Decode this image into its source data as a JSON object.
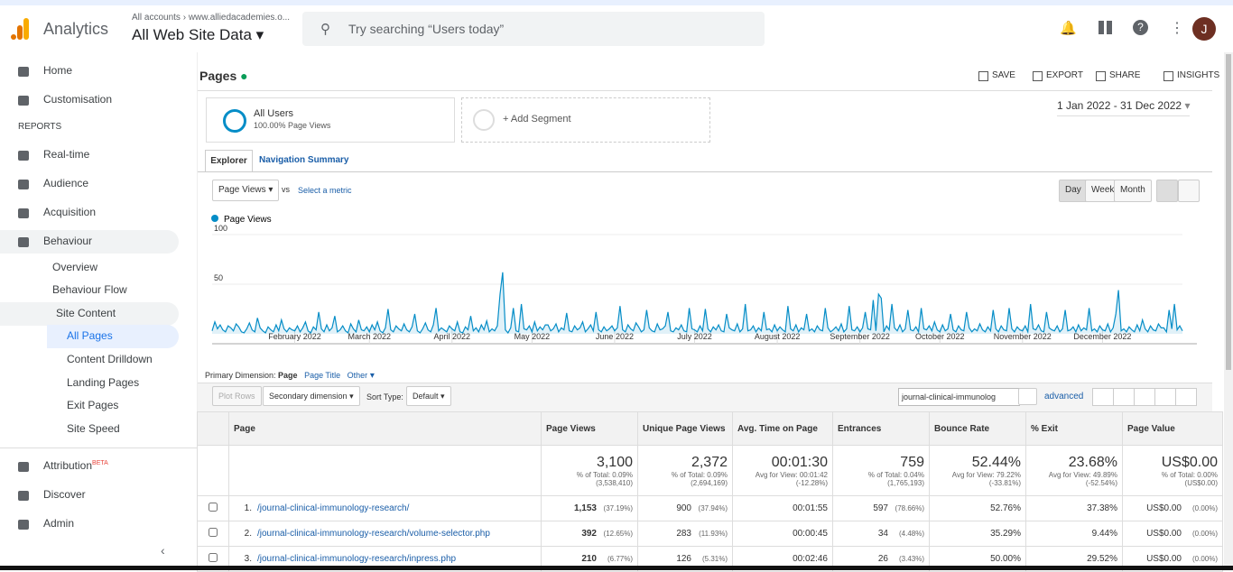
{
  "header": {
    "product": "Analytics",
    "breadcrumb_root": "All accounts",
    "breadcrumb_property": "www.alliedacademies.o...",
    "view": "All Web Site Data",
    "search_placeholder": "Try searching “Users today”",
    "avatar": "J"
  },
  "sidebar": {
    "items": [
      "Home",
      "Customisation",
      "REPORTS",
      "Real-time",
      "Audience",
      "Acquisition",
      "Behaviour",
      "Overview",
      "Behaviour Flow",
      "Site Content",
      "All Pages",
      "Content Drilldown",
      "Landing Pages",
      "Exit Pages",
      "Site Speed",
      "Attribution",
      "Discover",
      "Admin"
    ],
    "beta": "BETA"
  },
  "page": {
    "title": "Pages",
    "actions": [
      "SAVE",
      "EXPORT",
      "SHARE",
      "INSIGHTS"
    ],
    "segment_name": "All Users",
    "segment_sub": "100.00% Page Views",
    "add_segment": "+ Add Segment",
    "date_range": "1 Jan 2022 - 31 Dec 2022",
    "tabs": [
      "Explorer",
      "Navigation Summary"
    ],
    "metric": "Page Views",
    "vs": "vs",
    "select_metric": "Select a metric",
    "granularity": [
      "Day",
      "Week",
      "Month"
    ]
  },
  "chart_data": {
    "type": "line",
    "xlim": [
      0,
      364
    ],
    "ylim": [
      0,
      100
    ],
    "yticks": [
      50,
      100
    ],
    "xticks": [
      {
        "value": 31,
        "label": "February 2022"
      },
      {
        "value": 59,
        "label": "March 2022"
      },
      {
        "value": 90,
        "label": "April 2022"
      },
      {
        "value": 120,
        "label": "May 2022"
      },
      {
        "value": 151,
        "label": "June 2022"
      },
      {
        "value": 181,
        "label": "July 2022"
      },
      {
        "value": 212,
        "label": "August 2022"
      },
      {
        "value": 243,
        "label": "September 2022"
      },
      {
        "value": 273,
        "label": "October 2022"
      },
      {
        "value": 304,
        "label": "November 2022"
      },
      {
        "value": 334,
        "label": "December 2022"
      }
    ],
    "series": [
      {
        "name": "Page Views",
        "color": "#058dc7",
        "values": [
          3,
          12,
          5,
          9,
          4,
          2,
          8,
          6,
          3,
          10,
          7,
          2,
          1,
          5,
          11,
          4,
          2,
          16,
          6,
          3,
          1,
          7,
          4,
          2,
          9,
          3,
          14,
          5,
          2,
          6,
          4,
          3,
          8,
          2,
          6,
          12,
          3,
          1,
          7,
          4,
          22,
          5,
          2,
          9,
          3,
          6,
          18,
          2,
          4,
          8,
          3,
          1,
          10,
          5,
          2,
          14,
          4,
          3,
          7,
          2,
          9,
          4,
          12,
          3,
          1,
          6,
          25,
          4,
          2,
          8,
          5,
          3,
          10,
          4,
          2,
          7,
          20,
          3,
          1,
          5,
          11,
          4,
          2,
          9,
          26,
          3,
          6,
          4,
          2,
          8,
          5,
          3,
          12,
          2,
          1,
          7,
          4,
          18,
          3,
          6,
          2,
          9,
          4,
          13,
          2,
          5,
          3,
          8,
          40,
          62,
          4,
          1,
          6,
          26,
          3,
          2,
          30,
          5,
          4,
          8,
          2,
          12,
          3,
          7,
          4,
          9,
          9,
          3,
          5,
          10,
          2,
          6,
          4,
          21,
          3,
          2,
          8,
          4,
          6,
          12,
          2,
          5,
          9,
          3,
          22,
          4,
          2,
          7,
          3,
          5,
          8,
          3,
          6,
          28,
          4,
          2,
          9,
          5,
          3,
          11,
          7,
          2,
          4,
          24,
          6,
          3,
          2,
          10,
          4,
          5,
          8,
          22,
          3,
          2,
          6,
          4,
          9,
          3,
          2,
          26,
          5,
          4,
          2,
          8,
          3,
          25,
          5,
          2,
          7,
          4,
          9,
          3,
          2,
          20,
          6,
          4,
          3,
          10,
          2,
          5,
          30,
          3,
          4,
          8,
          2,
          6,
          3,
          22,
          4,
          5,
          2,
          9,
          3,
          7,
          4,
          2,
          28,
          5,
          3,
          9,
          2,
          6,
          4,
          20,
          3,
          5,
          2,
          8,
          4,
          3,
          26,
          6,
          2,
          4,
          7,
          3,
          10,
          2,
          5,
          28,
          4,
          3,
          7,
          2,
          6,
          22,
          5,
          4,
          34,
          3,
          40,
          36,
          2,
          8,
          4,
          30,
          6,
          3,
          9,
          2,
          5,
          24,
          4,
          3,
          7,
          2,
          26,
          5,
          4,
          8,
          3,
          12,
          4,
          2,
          9,
          3,
          5,
          20,
          4,
          2,
          8,
          4,
          3,
          22,
          6,
          2,
          5,
          3,
          10,
          4,
          2,
          7,
          3,
          24,
          5,
          2,
          8,
          4,
          3,
          26,
          5,
          2,
          7,
          4,
          3,
          8,
          2,
          30,
          5,
          4,
          9,
          3,
          2,
          22,
          6,
          4,
          3,
          8,
          2,
          5,
          24,
          3,
          4,
          7,
          2,
          9,
          3,
          6,
          4,
          26,
          3,
          5,
          2,
          8,
          4,
          3,
          10,
          2,
          6,
          20,
          44,
          3,
          5,
          2,
          7,
          4,
          2,
          9,
          3,
          14,
          5,
          2,
          8,
          4,
          3,
          10,
          6,
          6,
          2,
          24,
          5,
          30,
          4,
          8,
          3
        ]
      }
    ]
  },
  "controls": {
    "primary_label": "Primary Dimension:",
    "primary": "Page",
    "page_title": "Page Title",
    "other": "Other",
    "plot_rows": "Plot Rows",
    "secondary": "Secondary dimension",
    "sort_label": "Sort Type:",
    "sort": "Default",
    "filter": "journal-clinical-immunolog",
    "advanced": "advanced"
  },
  "table": {
    "headers": [
      "Page",
      "Page Views",
      "Unique Page Views",
      "Avg. Time on Page",
      "Entrances",
      "Bounce Rate",
      "% Exit",
      "Page Value"
    ],
    "totals": [
      [
        "3,100",
        "% of Total: 0.09%",
        "(3,538,410)"
      ],
      [
        "2,372",
        "% of Total: 0.09%",
        "(2,694,169)"
      ],
      [
        "00:01:30",
        "Avg for View: 00:01:42",
        "(-12.28%)"
      ],
      [
        "759",
        "% of Total: 0.04%",
        "(1,765,193)"
      ],
      [
        "52.44%",
        "Avg for View: 79.22%",
        "(-33.81%)"
      ],
      [
        "23.68%",
        "Avg for View: 49.89%",
        "(-52.54%)"
      ],
      [
        "US$0.00",
        "% of Total: 0.00%",
        "(US$0.00)"
      ]
    ],
    "rows": [
      [
        "1.",
        "/journal-clinical-immunology-research/",
        "1,153",
        "(37.19%)",
        "900",
        "(37.94%)",
        "00:01:55",
        "597",
        "(78.66%)",
        "52.76%",
        "37.38%",
        "US$0.00",
        "(0.00%)"
      ],
      [
        "2.",
        "/journal-clinical-immunology-research/volume-selector.php",
        "392",
        "(12.65%)",
        "283",
        "(11.93%)",
        "00:00:45",
        "34",
        "(4.48%)",
        "35.29%",
        "9.44%",
        "US$0.00",
        "(0.00%)"
      ],
      [
        "3.",
        "/journal-clinical-immunology-research/inpress.php",
        "210",
        "(6.77%)",
        "126",
        "(5.31%)",
        "00:02:46",
        "26",
        "(3.43%)",
        "50.00%",
        "29.52%",
        "US$0.00",
        "(0.00%)"
      ]
    ]
  }
}
